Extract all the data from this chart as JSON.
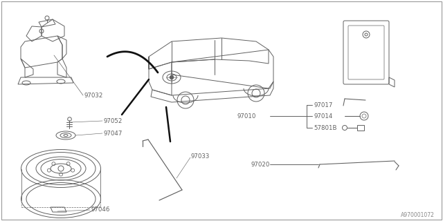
{
  "bg_color": "#ffffff",
  "line_color": "#606060",
  "border_color": "#999999",
  "watermark": "A970001072",
  "lw": 0.7
}
